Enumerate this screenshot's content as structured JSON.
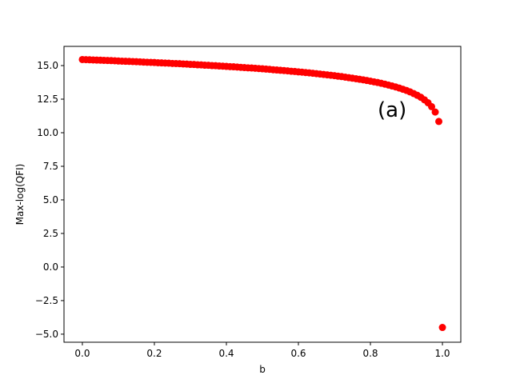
{
  "chart_data": {
    "type": "scatter",
    "color": "#ff0000",
    "x_label": "b",
    "y_label": "Max-log(QFI)",
    "annotation": "(a)",
    "x": [
      0.0,
      0.01,
      0.02,
      0.03,
      0.04,
      0.05,
      0.06,
      0.07,
      0.08,
      0.09,
      0.1,
      0.11,
      0.12,
      0.13,
      0.14,
      0.15,
      0.16,
      0.17,
      0.18,
      0.19,
      0.2,
      0.21,
      0.22,
      0.23,
      0.24,
      0.25,
      0.26,
      0.27,
      0.28,
      0.29,
      0.3,
      0.31,
      0.32,
      0.33,
      0.34,
      0.35,
      0.36,
      0.37,
      0.38,
      0.39,
      0.4,
      0.41,
      0.42,
      0.43,
      0.44,
      0.45,
      0.46,
      0.47,
      0.48,
      0.49,
      0.5,
      0.51,
      0.52,
      0.53,
      0.54,
      0.55,
      0.56,
      0.57,
      0.58,
      0.59,
      0.6,
      0.61,
      0.62,
      0.63,
      0.64,
      0.65,
      0.66,
      0.67,
      0.68,
      0.69,
      0.7,
      0.71,
      0.72,
      0.73,
      0.74,
      0.75,
      0.76,
      0.77,
      0.78,
      0.79,
      0.8,
      0.81,
      0.82,
      0.83,
      0.84,
      0.85,
      0.86,
      0.87,
      0.88,
      0.89,
      0.9,
      0.91,
      0.92,
      0.93,
      0.94,
      0.95,
      0.96,
      0.97,
      0.98,
      0.99,
      1.0
    ],
    "values": [
      15.45,
      15.44,
      15.43,
      15.42,
      15.41,
      15.4,
      15.39,
      15.38,
      15.37,
      15.36,
      15.34,
      15.33,
      15.32,
      15.31,
      15.3,
      15.29,
      15.28,
      15.26,
      15.25,
      15.24,
      15.23,
      15.21,
      15.2,
      15.19,
      15.18,
      15.16,
      15.15,
      15.14,
      15.12,
      15.11,
      15.09,
      15.08,
      15.06,
      15.05,
      15.03,
      15.02,
      15.0,
      14.99,
      14.97,
      14.96,
      14.94,
      14.92,
      14.91,
      14.89,
      14.87,
      14.85,
      14.83,
      14.82,
      14.8,
      14.78,
      14.76,
      14.74,
      14.72,
      14.69,
      14.67,
      14.65,
      14.63,
      14.61,
      14.58,
      14.56,
      14.53,
      14.51,
      14.48,
      14.46,
      14.43,
      14.4,
      14.37,
      14.34,
      14.31,
      14.28,
      14.25,
      14.21,
      14.18,
      14.14,
      14.1,
      14.06,
      14.02,
      13.98,
      13.94,
      13.89,
      13.84,
      13.79,
      13.74,
      13.68,
      13.62,
      13.55,
      13.48,
      13.41,
      13.33,
      13.24,
      13.15,
      13.04,
      12.92,
      12.79,
      12.64,
      12.45,
      12.23,
      11.94,
      11.54,
      10.84,
      -4.5
    ],
    "xlim": [
      -0.051,
      1.051
    ],
    "ylim": [
      -5.6,
      16.43
    ],
    "xticks": [
      {
        "value": 0,
        "label": "0.0"
      },
      {
        "value": 0.2,
        "label": "0.2"
      },
      {
        "value": 0.4,
        "label": "0.4"
      },
      {
        "value": 0.6,
        "label": "0.6"
      },
      {
        "value": 0.8,
        "label": "0.8"
      },
      {
        "value": 1,
        "label": "1.0"
      }
    ],
    "yticks": [
      {
        "value": -5,
        "label": "−5.0"
      },
      {
        "value": -2.5,
        "label": "−2.5"
      },
      {
        "value": 0,
        "label": "0.0"
      },
      {
        "value": 2.5,
        "label": "2.5"
      },
      {
        "value": 5,
        "label": "5.0"
      },
      {
        "value": 7.5,
        "label": "7.5"
      },
      {
        "value": 10,
        "label": "10.0"
      },
      {
        "value": 12.5,
        "label": "12.5"
      },
      {
        "value": 15,
        "label": "15.0"
      }
    ],
    "annotation_x": 0.82,
    "annotation_y": 11.2
  }
}
